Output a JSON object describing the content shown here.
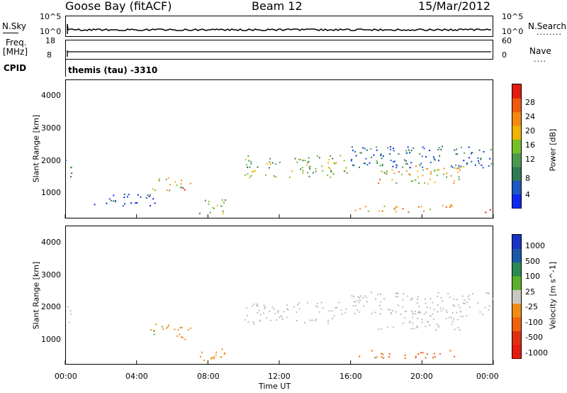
{
  "header": {
    "station": "Goose Bay (fitACF)",
    "beam": "Beam 12",
    "date": "15/Mar/2012"
  },
  "top_panels": {
    "nsky_label": "N.Sky",
    "nsky_ticks": [
      "10^5",
      "10^0"
    ],
    "nsearch_label": "N.Search",
    "nsearch_dots": "........",
    "nsearch_ticks": [
      "10^5",
      "10^0"
    ],
    "freq_label": "Freq.",
    "freq_unit": "[MHz]",
    "freq_ticks": [
      "18",
      "8"
    ],
    "nave_label": "Nave",
    "nave_dots": "....",
    "nave_ticks": [
      "60",
      "0"
    ],
    "cpid_label": "CPID",
    "cpid_text": "themis (tau) -3310"
  },
  "colors": {
    "power_scale": [
      "#1028ee",
      "#1e58c0",
      "#2e7a54",
      "#4c9a50",
      "#78be2a",
      "#f0b400",
      "#f28a12",
      "#ee5a10",
      "#e41b10"
    ],
    "velocity_scale": [
      "#1a34c8",
      "#1a5aa8",
      "#2a8a52",
      "#5ab02c",
      "#c8c8c0",
      "#f08c16",
      "#f0620c",
      "#e03010",
      "#e41b10"
    ],
    "ground_scatter": "#bebeb8"
  },
  "chart_data": [
    {
      "type": "heatmap",
      "panel": "power",
      "ylabel": "Slant Range [km]",
      "ylim": [
        180,
        4600
      ],
      "yticks": [
        "4000",
        "3000",
        "2000",
        "1000"
      ],
      "xlim": [
        0,
        24
      ],
      "colorbar": {
        "label": "Power [dB]",
        "ticks": [
          "28",
          "24",
          "20",
          "16",
          "12",
          "8",
          "4"
        ]
      },
      "regions": [
        {
          "t_start": 0.0,
          "t_end": 0.4,
          "r_min": 1500,
          "r_max": 2100,
          "level": 0.25
        },
        {
          "t_start": 1.5,
          "t_end": 5.0,
          "r_min": 600,
          "r_max": 1000,
          "level": 0.15
        },
        {
          "t_start": 4.7,
          "t_end": 7.0,
          "r_min": 1000,
          "r_max": 1500,
          "level": 0.55
        },
        {
          "t_start": 6.4,
          "t_end": 6.8,
          "r_min": 1000,
          "r_max": 1200,
          "level": 0.95
        },
        {
          "t_start": 7.5,
          "t_end": 9.0,
          "r_min": 300,
          "r_max": 800,
          "level": 0.45
        },
        {
          "t_start": 10.0,
          "t_end": 15.8,
          "r_min": 1500,
          "r_max": 2200,
          "level": 0.45
        },
        {
          "t_start": 16.2,
          "t_end": 21.8,
          "r_min": 400,
          "r_max": 650,
          "level": 0.7
        },
        {
          "t_start": 17.5,
          "t_end": 22.5,
          "r_min": 1300,
          "r_max": 1900,
          "level": 0.6
        },
        {
          "t_start": 16.0,
          "t_end": 24.0,
          "r_min": 1800,
          "r_max": 2500,
          "level": 0.2
        },
        {
          "t_start": 23.5,
          "t_end": 23.8,
          "r_min": 300,
          "r_max": 500,
          "level": 1.0
        }
      ]
    },
    {
      "type": "heatmap",
      "panel": "velocity",
      "ylabel": "Slant Range [km]",
      "ylim": [
        180,
        4600
      ],
      "yticks": [
        "4000",
        "3000",
        "2000",
        "1000"
      ],
      "xlabel": "Time UT",
      "xticks": [
        "00:00",
        "04:00",
        "08:00",
        "12:00",
        "16:00",
        "20:00",
        "00:00"
      ],
      "xlim": [
        0,
        24
      ],
      "colorbar": {
        "label": "Velocity [m s^-1]",
        "ticks": [
          "1000",
          "500",
          "100",
          "25",
          "-25",
          "-100",
          "-500",
          "-1000"
        ]
      },
      "regions": [
        {
          "t_start": 0.0,
          "t_end": 0.4,
          "r_min": 1500,
          "r_max": 2100,
          "velocity": 0
        },
        {
          "t_start": 4.7,
          "t_end": 7.0,
          "r_min": 1000,
          "r_max": 1500,
          "velocity": -200
        },
        {
          "t_start": 7.5,
          "t_end": 9.0,
          "r_min": 300,
          "r_max": 800,
          "velocity": -150
        },
        {
          "t_start": 10.0,
          "t_end": 15.8,
          "r_min": 1500,
          "r_max": 2200,
          "velocity": 0
        },
        {
          "t_start": 16.2,
          "t_end": 21.8,
          "r_min": 400,
          "r_max": 650,
          "velocity": -300
        },
        {
          "t_start": 17.5,
          "t_end": 22.5,
          "r_min": 1300,
          "r_max": 1900,
          "velocity": 0
        },
        {
          "t_start": 16.0,
          "t_end": 24.0,
          "r_min": 1800,
          "r_max": 2500,
          "velocity": 0
        }
      ]
    }
  ]
}
